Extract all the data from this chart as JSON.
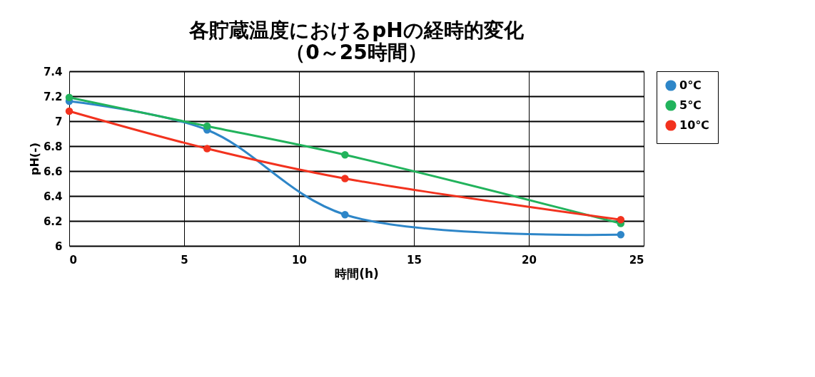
{
  "chart_data": {
    "type": "line",
    "title": "各貯蔵温度におけるpHの経時的変化",
    "subtitle": "（0～25時間）",
    "xlabel": "時間(h)",
    "ylabel": "pH(-)",
    "x": [
      0,
      6,
      12,
      24
    ],
    "series": [
      {
        "name": "0℃",
        "color": "#2e86c8",
        "values": [
          7.16,
          6.93,
          6.25,
          6.09
        ]
      },
      {
        "name": "5℃",
        "color": "#22b35c",
        "values": [
          7.19,
          6.96,
          6.73,
          6.18
        ]
      },
      {
        "name": "10℃",
        "color": "#f2321e",
        "values": [
          7.08,
          6.78,
          6.54,
          6.21
        ]
      }
    ],
    "xlim": [
      0,
      25
    ],
    "xticks": [
      0,
      5,
      10,
      15,
      20,
      25
    ],
    "ylim": [
      6,
      7.4
    ],
    "yticks": [
      6,
      6.2,
      6.4,
      6.6,
      6.8,
      7,
      7.2,
      7.4
    ],
    "grid": true,
    "legend": "right",
    "marker": "circle",
    "line_style": "solid"
  }
}
